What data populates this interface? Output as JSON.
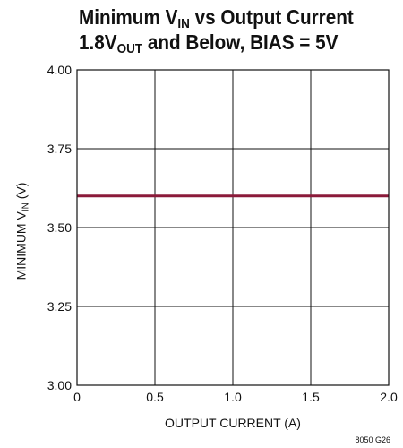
{
  "chart_data": {
    "type": "line",
    "title_line1": {
      "pre": "Minimum V",
      "sub": "IN",
      "post": " vs Output Current"
    },
    "title_line2": {
      "pre": "1.8V",
      "sub": "OUT",
      "post": " and Below, BIAS = 5V"
    },
    "xlabel": "OUTPUT CURRENT (A)",
    "ylabel": {
      "pre": "MINIMUM V",
      "sub": "IN",
      "post": " (V)"
    },
    "xlim": [
      0,
      2
    ],
    "ylim": [
      3.0,
      4.0
    ],
    "x_ticks": [
      0,
      0.5,
      1.0,
      1.5,
      2.0
    ],
    "x_tick_labels": [
      "0",
      "0.5",
      "1.0",
      "1.5",
      "2.0"
    ],
    "y_ticks": [
      3.0,
      3.25,
      3.5,
      3.75,
      4.0
    ],
    "y_tick_labels": [
      "3.00",
      "3.25",
      "3.50",
      "3.75",
      "4.00"
    ],
    "grid": true,
    "series": [
      {
        "x": [
          0,
          2.0
        ],
        "y": [
          3.6,
          3.6
        ],
        "color": "#8b1a3a"
      }
    ],
    "figure_code": "8050 G26"
  }
}
